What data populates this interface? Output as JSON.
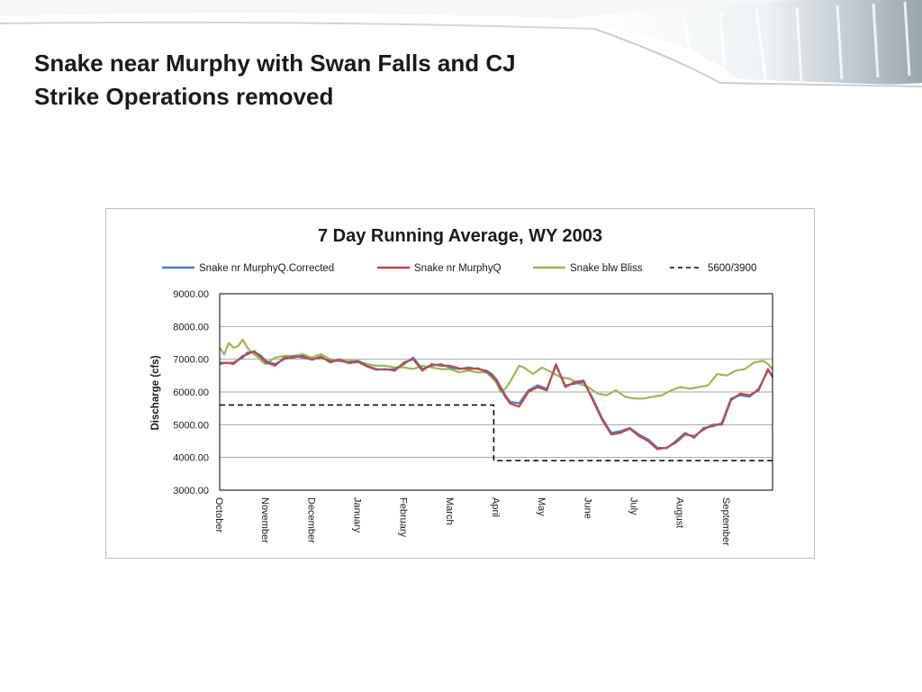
{
  "slide": {
    "title_line1": "Snake near Murphy with Swan Falls and CJ",
    "title_line2": "Strike Operations removed"
  },
  "colors": {
    "corrected": "#4a7ebb",
    "murphy": "#be4b48",
    "bliss": "#98b954",
    "threshold": "#000000",
    "grid": "#a6a6a6",
    "text": "#1a1a1a"
  },
  "chart_data": {
    "type": "line",
    "title": "7 Day Running Average, WY 2003",
    "xlabel": "",
    "ylabel": "Discharge (cfs)",
    "ylim": [
      3000,
      9000
    ],
    "yticks": [
      "3000.00",
      "4000.00",
      "5000.00",
      "6000.00",
      "7000.00",
      "8000.00",
      "9000.00"
    ],
    "ytick_values": [
      3000,
      4000,
      5000,
      6000,
      7000,
      8000,
      9000
    ],
    "xlim": [
      0,
      12
    ],
    "month_labels": [
      "October",
      "November",
      "December",
      "January",
      "February",
      "March",
      "April",
      "May",
      "June",
      "July",
      "August",
      "September"
    ],
    "grid": true,
    "legend_position": "top",
    "series": [
      {
        "name": "Snake nr MurphyQ.Corrected",
        "style": "solid",
        "x": [
          0,
          0.15,
          0.3,
          0.5,
          0.6,
          0.75,
          0.9,
          1.0,
          1.2,
          1.4,
          1.6,
          1.8,
          2.0,
          2.2,
          2.4,
          2.6,
          2.8,
          3.0,
          3.2,
          3.4,
          3.6,
          3.8,
          4.0,
          4.2,
          4.4,
          4.6,
          4.8,
          5.0,
          5.2,
          5.4,
          5.6,
          5.8,
          5.9,
          6.0,
          6.1,
          6.2,
          6.3,
          6.5,
          6.7,
          6.9,
          7.1,
          7.3,
          7.5,
          7.7,
          7.9,
          8.1,
          8.3,
          8.5,
          8.7,
          8.9,
          9.1,
          9.3,
          9.5,
          9.7,
          9.9,
          10.1,
          10.3,
          10.5,
          10.7,
          10.9,
          11.1,
          11.3,
          11.5,
          11.7,
          11.9,
          12.0
        ],
        "values": [
          6900,
          6880,
          6900,
          7050,
          7200,
          7220,
          7100,
          6950,
          6850,
          7000,
          7100,
          7050,
          7000,
          7050,
          6950,
          6950,
          6900,
          6950,
          6800,
          6700,
          6680,
          6700,
          6850,
          7050,
          6700,
          6800,
          6850,
          6750,
          6700,
          6750,
          6700,
          6650,
          6550,
          6400,
          6150,
          5900,
          5700,
          5650,
          6050,
          6200,
          6100,
          6800,
          6200,
          6250,
          6300,
          5800,
          5200,
          4750,
          4800,
          4900,
          4700,
          4550,
          4300,
          4280,
          4500,
          4750,
          4600,
          4900,
          4950,
          5050,
          5800,
          5900,
          5850,
          6100,
          6650,
          6500
        ]
      },
      {
        "name": "Snake nr MurphyQ",
        "style": "solid",
        "x": [
          0,
          0.15,
          0.3,
          0.5,
          0.6,
          0.75,
          0.9,
          1.0,
          1.2,
          1.4,
          1.6,
          1.8,
          2.0,
          2.2,
          2.4,
          2.6,
          2.8,
          3.0,
          3.2,
          3.4,
          3.6,
          3.8,
          4.0,
          4.2,
          4.4,
          4.6,
          4.8,
          5.0,
          5.2,
          5.4,
          5.6,
          5.8,
          5.9,
          6.0,
          6.1,
          6.2,
          6.3,
          6.5,
          6.7,
          6.9,
          7.1,
          7.3,
          7.5,
          7.7,
          7.9,
          8.1,
          8.3,
          8.5,
          8.7,
          8.9,
          9.1,
          9.3,
          9.5,
          9.7,
          9.9,
          10.1,
          10.3,
          10.5,
          10.7,
          10.9,
          11.1,
          11.3,
          11.5,
          11.7,
          11.9,
          12.0
        ],
        "values": [
          6850,
          6900,
          6850,
          7100,
          7150,
          7250,
          7050,
          6900,
          6800,
          7050,
          7050,
          7100,
          6980,
          7080,
          6900,
          7000,
          6880,
          6920,
          6780,
          6680,
          6700,
          6650,
          6900,
          7000,
          6650,
          6850,
          6800,
          6800,
          6720,
          6700,
          6720,
          6600,
          6500,
          6350,
          6100,
          5850,
          5650,
          5550,
          6000,
          6150,
          6050,
          6850,
          6150,
          6300,
          6350,
          5750,
          5150,
          4700,
          4750,
          4880,
          4650,
          4500,
          4250,
          4300,
          4450,
          4700,
          4650,
          4850,
          5000,
          5000,
          5750,
          5950,
          5900,
          6050,
          6700,
          6450
        ]
      },
      {
        "name": "Snake blw Bliss",
        "style": "solid",
        "x": [
          0,
          0.1,
          0.2,
          0.3,
          0.4,
          0.5,
          0.6,
          0.7,
          0.8,
          0.9,
          1.0,
          1.2,
          1.4,
          1.6,
          1.8,
          2.0,
          2.2,
          2.4,
          2.6,
          2.8,
          3.0,
          3.2,
          3.4,
          3.6,
          3.8,
          4.0,
          4.2,
          4.4,
          4.6,
          4.8,
          5.0,
          5.2,
          5.4,
          5.6,
          5.8,
          5.9,
          6.0,
          6.1,
          6.2,
          6.3,
          6.5,
          6.6,
          6.8,
          7.0,
          7.2,
          7.4,
          7.6,
          7.8,
          8.0,
          8.2,
          8.4,
          8.6,
          8.8,
          9.0,
          9.2,
          9.4,
          9.6,
          9.8,
          10.0,
          10.2,
          10.4,
          10.6,
          10.8,
          11.0,
          11.2,
          11.4,
          11.6,
          11.8,
          11.9,
          12.0
        ],
        "values": [
          7350,
          7150,
          7500,
          7350,
          7400,
          7600,
          7350,
          7200,
          7100,
          6950,
          6850,
          7050,
          7100,
          7100,
          7150,
          7050,
          7150,
          7000,
          6950,
          6950,
          6950,
          6850,
          6800,
          6800,
          6750,
          6750,
          6700,
          6800,
          6750,
          6700,
          6700,
          6600,
          6650,
          6600,
          6600,
          6450,
          6300,
          6000,
          6100,
          6300,
          6800,
          6750,
          6550,
          6750,
          6600,
          6450,
          6400,
          6250,
          6150,
          5950,
          5900,
          6050,
          5850,
          5800,
          5800,
          5850,
          5900,
          6050,
          6150,
          6100,
          6150,
          6200,
          6550,
          6500,
          6650,
          6700,
          6900,
          6950,
          6850,
          6700
        ]
      },
      {
        "name": "5600/3900",
        "style": "dashed",
        "x": [
          0,
          5.95,
          5.95,
          12.0
        ],
        "values": [
          5600,
          5600,
          3900,
          3900
        ]
      }
    ]
  }
}
